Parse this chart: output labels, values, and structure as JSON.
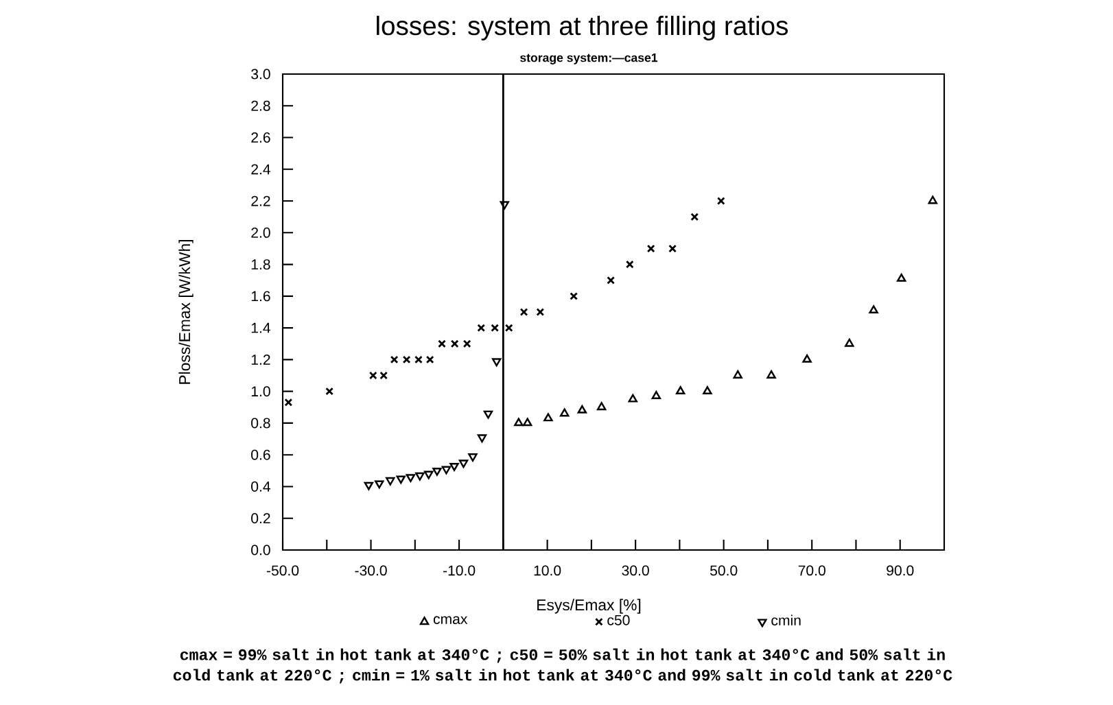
{
  "chart_data": {
    "type": "scatter",
    "title": "losses: system at three filling ratios",
    "subtitle": "storage system:—case1",
    "xlabel": "Esys/Emax [%]",
    "ylabel": "Ploss/Emax [W/kWh]",
    "xlim": [
      -50,
      100
    ],
    "ylim": [
      0,
      3
    ],
    "xticks": [
      {
        "value": -50,
        "label": "-50.0"
      },
      {
        "value": -40,
        "label": null
      },
      {
        "value": -30,
        "label": "-30.0"
      },
      {
        "value": -20,
        "label": null
      },
      {
        "value": -10,
        "label": "-10.0"
      },
      {
        "value": 0,
        "label": null
      },
      {
        "value": 10,
        "label": "10.0"
      },
      {
        "value": 20,
        "label": null
      },
      {
        "value": 30,
        "label": "30.0"
      },
      {
        "value": 40,
        "label": null
      },
      {
        "value": 50,
        "label": "50.0"
      },
      {
        "value": 60,
        "label": null
      },
      {
        "value": 70,
        "label": "70.0"
      },
      {
        "value": 80,
        "label": null
      },
      {
        "value": 90,
        "label": "90.0"
      }
    ],
    "yticks": [
      {
        "value": 0,
        "label": "0.0"
      },
      0.2,
      0.4,
      0.6,
      0.8,
      {
        "value": 1,
        "label": "1.0"
      },
      1.2,
      1.4,
      1.6,
      1.8,
      {
        "value": 2,
        "label": "2.0"
      },
      2.2,
      2.4,
      2.6,
      2.8,
      {
        "value": 3,
        "label": "3.0"
      }
    ],
    "legend": "bottom",
    "grid": false,
    "ref_lines": [
      {
        "axis": "x",
        "value": 0,
        "color": "#000000",
        "line_style": "solid"
      }
    ],
    "series": [
      {
        "name": "cmax",
        "color": "#000000",
        "marker": "triangle",
        "x": [
          3.5,
          5.5,
          10.2,
          13.9,
          17.9,
          22.3,
          29.4,
          34.7,
          40.2,
          46.3,
          53.2,
          60.8,
          68.9,
          78.5,
          84,
          90.3,
          97.4
        ],
        "values": [
          0.8,
          0.8,
          0.83,
          0.86,
          0.88,
          0.9,
          0.95,
          0.97,
          1.0,
          1.0,
          1.1,
          1.1,
          1.2,
          1.3,
          1.51,
          1.71,
          2.2
        ]
      },
      {
        "name": "c50",
        "color": "#000000",
        "marker": "cross",
        "x": [
          -48.7,
          -39.4,
          -29.5,
          -27.1,
          -24.7,
          -21.9,
          -19.2,
          -16.6,
          -13.9,
          -11,
          -8.2,
          -5,
          -1.9,
          1.3,
          4.7,
          8.4,
          16,
          24.4,
          28.7,
          33.5,
          38.4,
          43.4,
          49.4
        ],
        "values": [
          0.93,
          1.0,
          1.1,
          1.1,
          1.2,
          1.2,
          1.2,
          1.2,
          1.3,
          1.3,
          1.3,
          1.4,
          1.4,
          1.4,
          1.5,
          1.5,
          1.6,
          1.7,
          1.8,
          1.9,
          1.9,
          2.1,
          2.2
        ]
      },
      {
        "name": "cmin",
        "color": "#000000",
        "marker": "triangle_down",
        "x": [
          -30.5,
          -28.1,
          -25.6,
          -23.2,
          -21,
          -18.9,
          -16.9,
          -15,
          -12.9,
          -11.1,
          -9,
          -6.9,
          -4.8,
          -3.4,
          -1.5,
          0.3
        ],
        "values": [
          0.41,
          0.42,
          0.44,
          0.45,
          0.46,
          0.47,
          0.48,
          0.5,
          0.51,
          0.53,
          0.55,
          0.59,
          0.71,
          0.86,
          1.19,
          2.18
        ]
      }
    ],
    "annotations": [
      "cmax = 99% salt in hot tank at 340°C ; c50 = 50% salt in hot tank at 340°C and 50% salt in cold tank at 220°C ; cmin = 1% salt in hot tank at 340°C and 99% salt in cold tank at 220°C"
    ]
  }
}
